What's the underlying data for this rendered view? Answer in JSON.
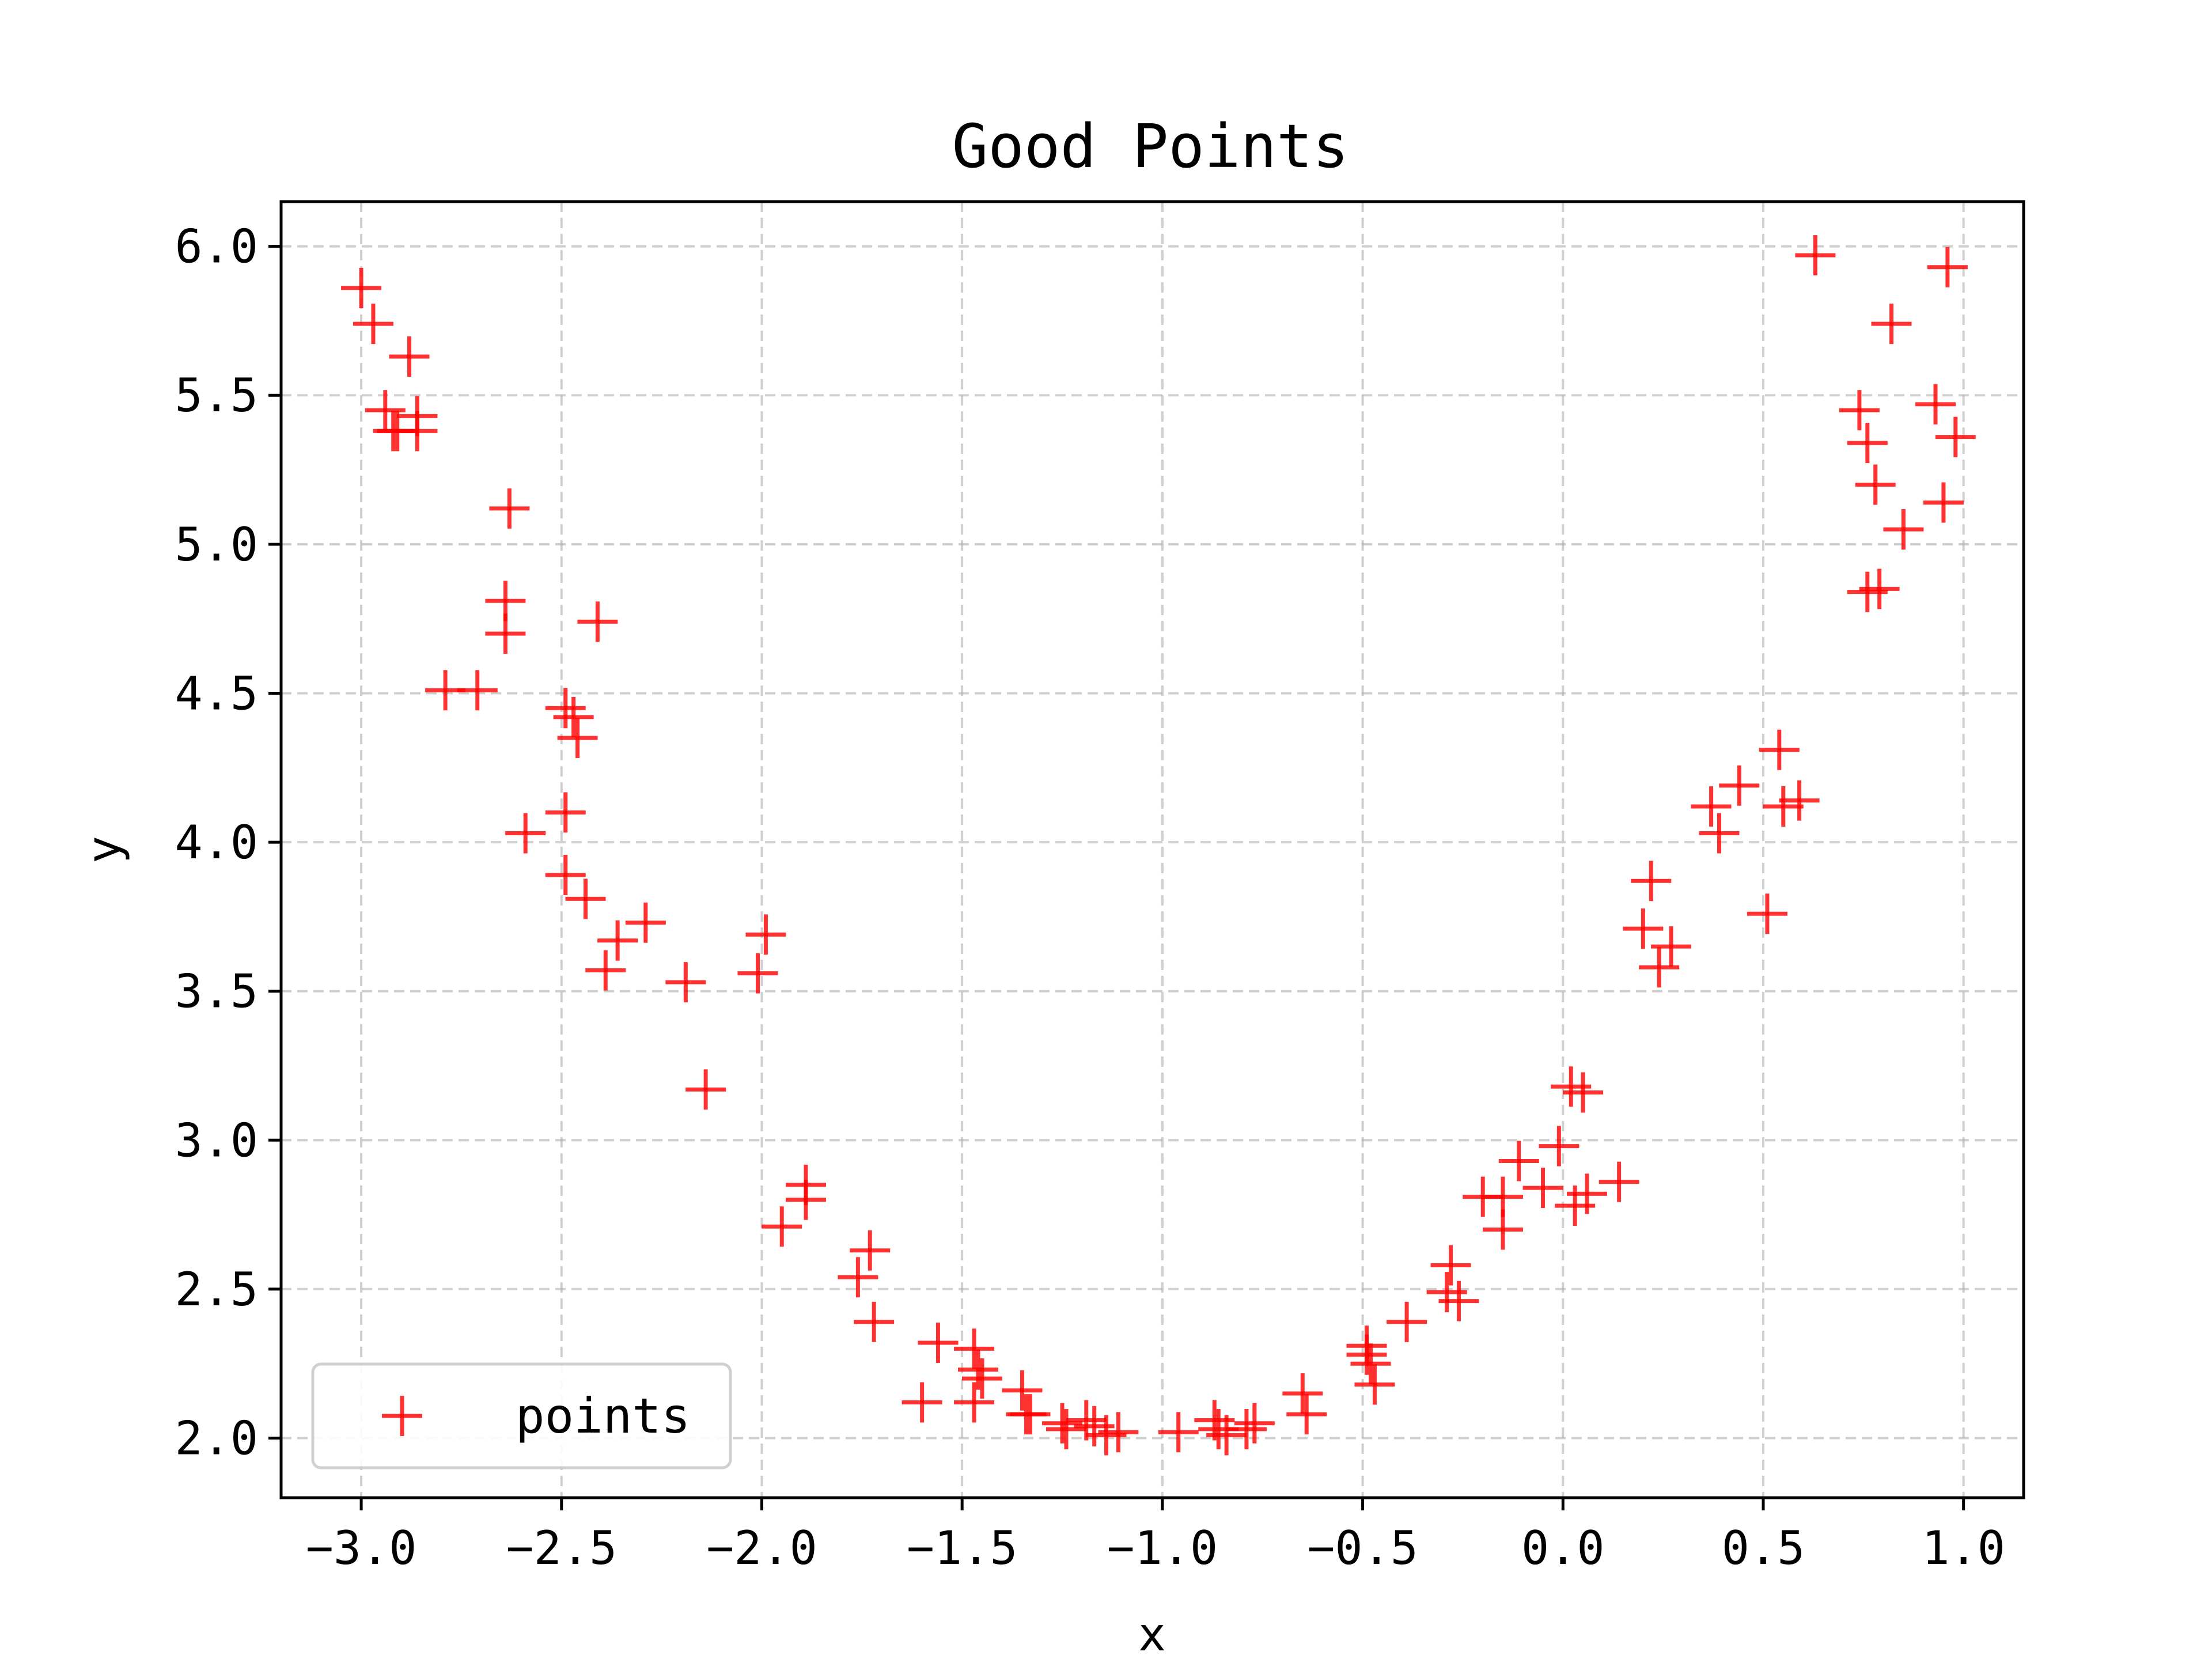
{
  "chart_data": {
    "type": "scatter",
    "title": "Good Points",
    "xlabel": "x",
    "ylabel": "y",
    "xlim": [
      -3.2,
      1.15
    ],
    "ylim": [
      1.8,
      6.15
    ],
    "xticks": [
      -3.0,
      -2.5,
      -2.0,
      -1.5,
      -1.0,
      -0.5,
      0.0,
      0.5,
      1.0
    ],
    "xtick_labels": [
      "−3.0",
      "−2.5",
      "−2.0",
      "−1.5",
      "−1.0",
      "−0.5",
      "0.0",
      "0.5",
      "1.0"
    ],
    "yticks": [
      2.0,
      2.5,
      3.0,
      3.5,
      4.0,
      4.5,
      5.0,
      5.5,
      6.0
    ],
    "ytick_labels": [
      "2.0",
      "2.5",
      "3.0",
      "3.5",
      "4.0",
      "4.5",
      "5.0",
      "5.5",
      "6.0"
    ],
    "grid": true,
    "legend_position": "lower-left",
    "series": [
      {
        "name": "points",
        "marker": "plus",
        "color": "#ff0000",
        "x": [
          -3.0,
          -2.97,
          -2.94,
          -2.92,
          -2.88,
          -2.86,
          -2.91,
          -2.86,
          -2.63,
          -2.64,
          -2.64,
          -2.79,
          -2.71,
          -2.49,
          -2.47,
          -2.46,
          -2.41,
          -2.59,
          -2.49,
          -2.49,
          -2.44,
          -2.36,
          -2.39,
          -2.29,
          -2.19,
          -2.01,
          -1.99,
          -2.14,
          -1.89,
          -1.89,
          -1.95,
          -1.73,
          -1.76,
          -1.72,
          -1.56,
          -1.6,
          -1.47,
          -1.46,
          -1.45,
          -1.47,
          -1.35,
          -1.34,
          -1.33,
          -1.25,
          -1.24,
          -1.19,
          -1.17,
          -1.14,
          -1.11,
          -0.96,
          -0.87,
          -0.86,
          -0.84,
          -0.79,
          -0.77,
          -0.65,
          -0.64,
          -0.49,
          -0.48,
          -0.47,
          -0.49,
          -0.39,
          -0.28,
          -0.29,
          -0.26,
          -0.2,
          -0.15,
          -0.15,
          -0.11,
          -0.05,
          -0.01,
          0.02,
          0.05,
          0.03,
          0.06,
          0.14,
          0.2,
          0.22,
          0.24,
          0.27,
          0.37,
          0.39,
          0.44,
          0.51,
          0.54,
          0.55,
          0.59,
          0.63,
          0.74,
          0.76,
          0.78,
          0.82,
          0.85,
          0.76,
          0.79,
          0.93,
          0.96,
          0.98,
          0.95
        ],
        "y": [
          5.86,
          5.74,
          5.45,
          5.38,
          5.63,
          5.43,
          5.38,
          5.38,
          5.12,
          4.81,
          4.7,
          4.51,
          4.51,
          4.45,
          4.42,
          4.35,
          4.74,
          4.03,
          4.1,
          3.89,
          3.81,
          3.67,
          3.57,
          3.73,
          3.53,
          3.56,
          3.69,
          3.17,
          2.85,
          2.8,
          2.71,
          2.63,
          2.54,
          2.39,
          2.32,
          2.12,
          2.3,
          2.23,
          2.2,
          2.12,
          2.16,
          2.08,
          2.08,
          2.05,
          2.03,
          2.06,
          2.04,
          2.01,
          2.02,
          2.02,
          2.06,
          2.03,
          2.01,
          2.03,
          2.05,
          2.15,
          2.08,
          2.31,
          2.25,
          2.18,
          2.28,
          2.39,
          2.58,
          2.49,
          2.46,
          2.81,
          2.7,
          2.81,
          2.93,
          2.84,
          2.98,
          3.18,
          3.16,
          2.78,
          2.82,
          2.86,
          3.71,
          3.87,
          3.58,
          3.65,
          4.12,
          4.03,
          4.19,
          3.76,
          4.31,
          4.12,
          4.14,
          5.97,
          5.45,
          5.34,
          5.2,
          5.74,
          5.05,
          4.84,
          4.85,
          5.47,
          5.93,
          5.36,
          5.14
        ]
      }
    ]
  }
}
